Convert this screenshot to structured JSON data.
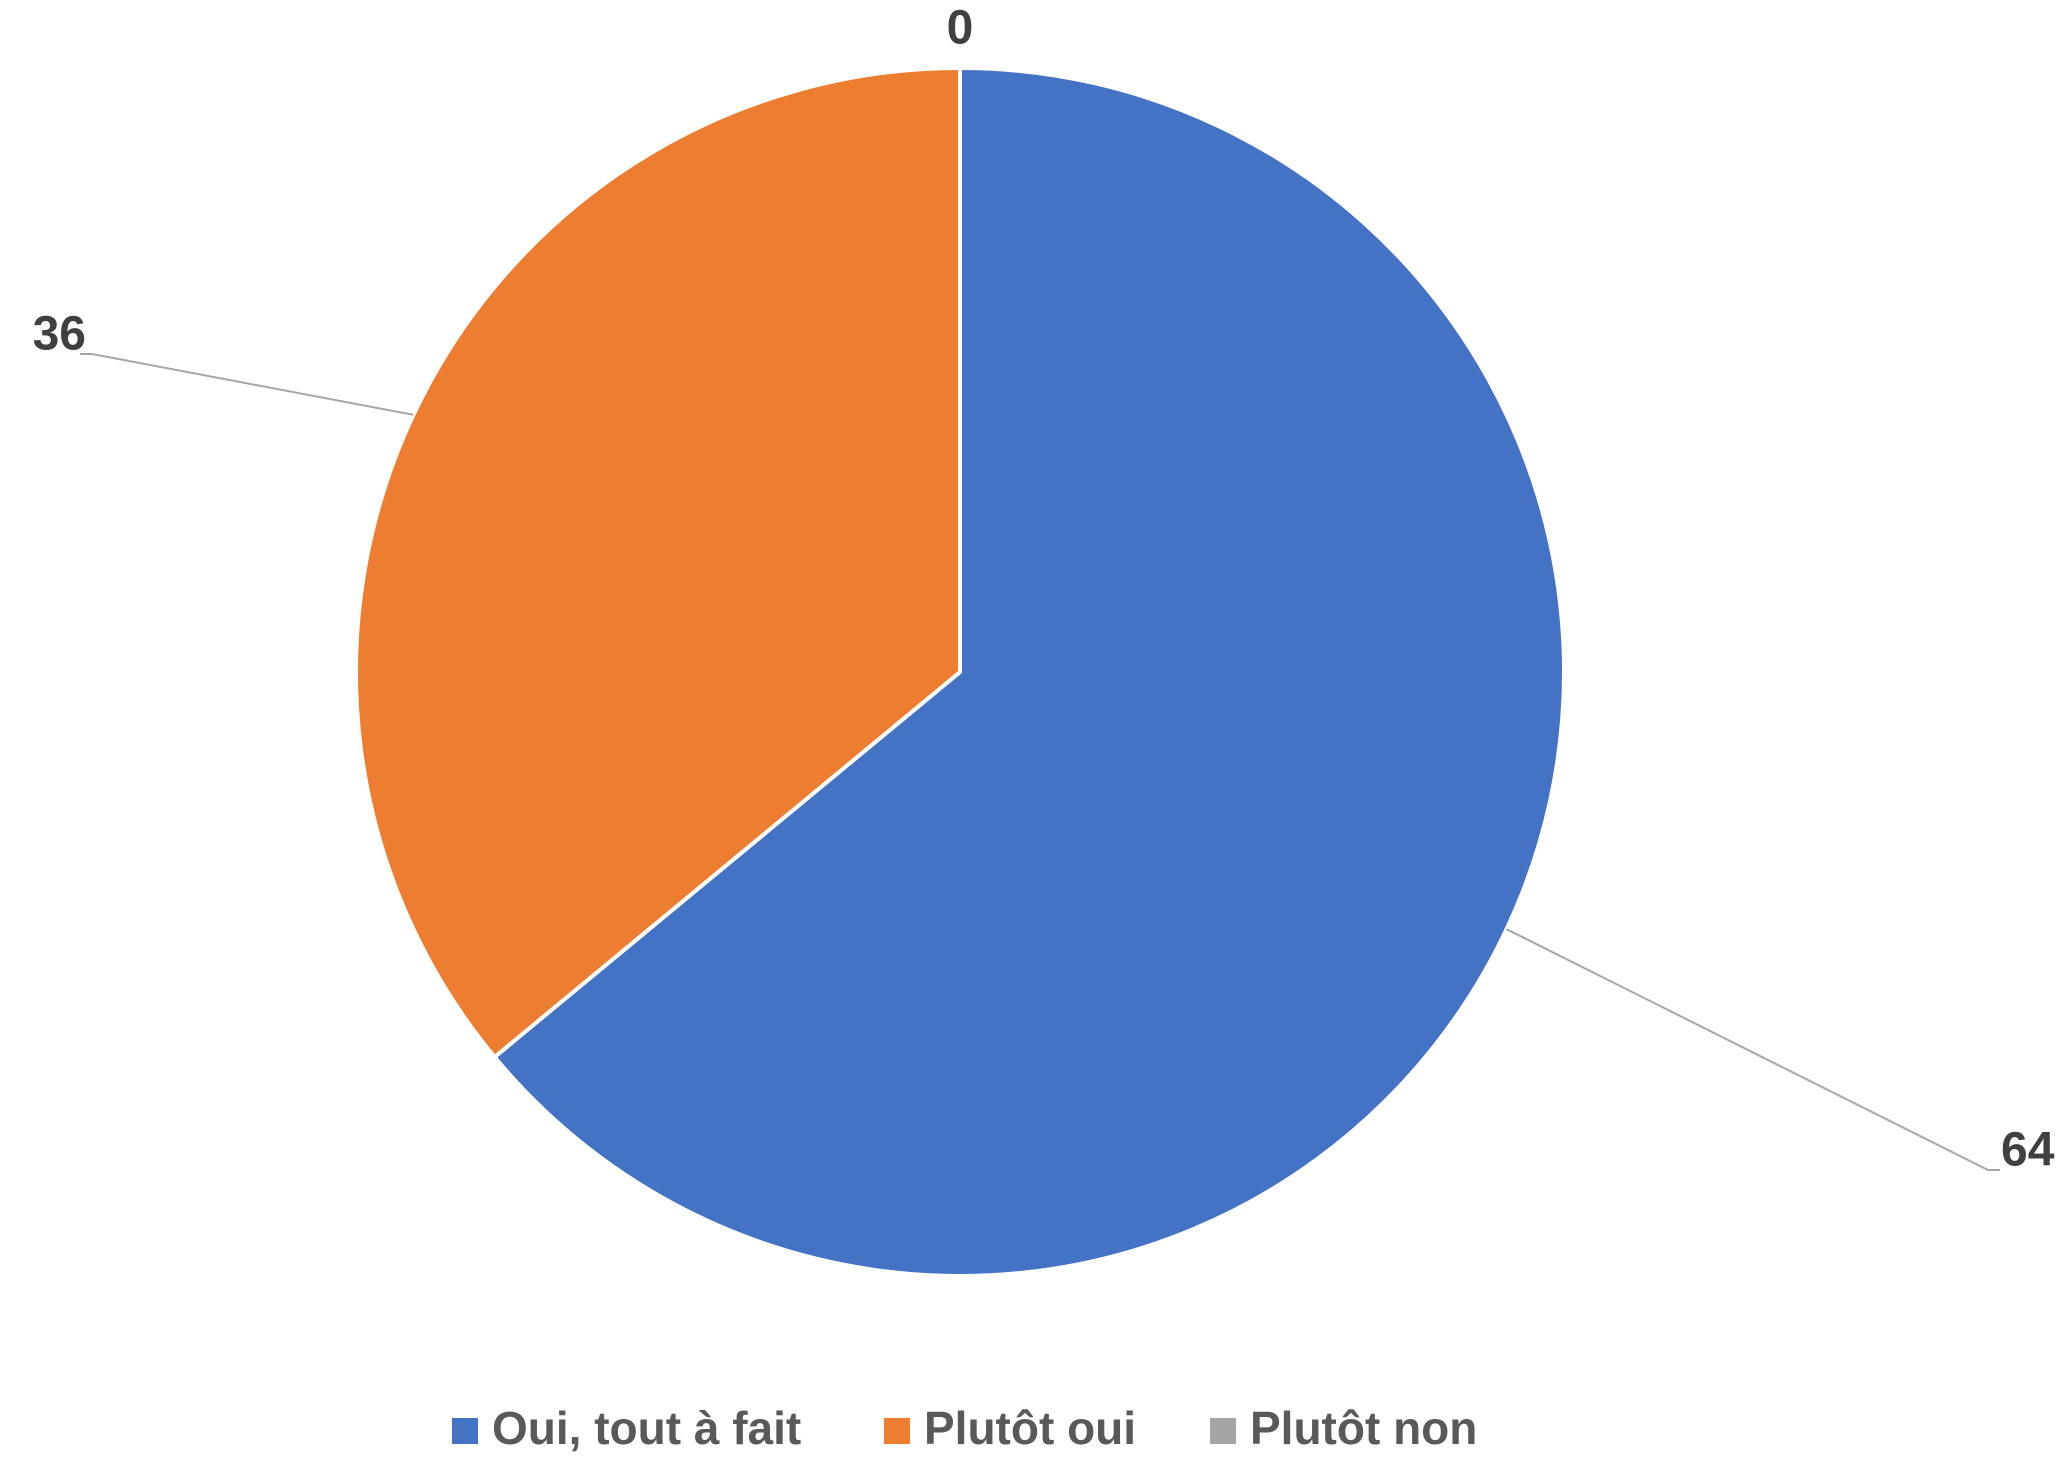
{
  "chart_data": {
    "type": "pie",
    "categories": [
      "Oui, tout à fait",
      "Plutôt oui",
      "Plutôt non"
    ],
    "values": [
      64,
      36,
      0
    ],
    "colors": [
      "#4472c4",
      "#ed7d31",
      "#a5a5a5"
    ],
    "legend": "bottom"
  }
}
